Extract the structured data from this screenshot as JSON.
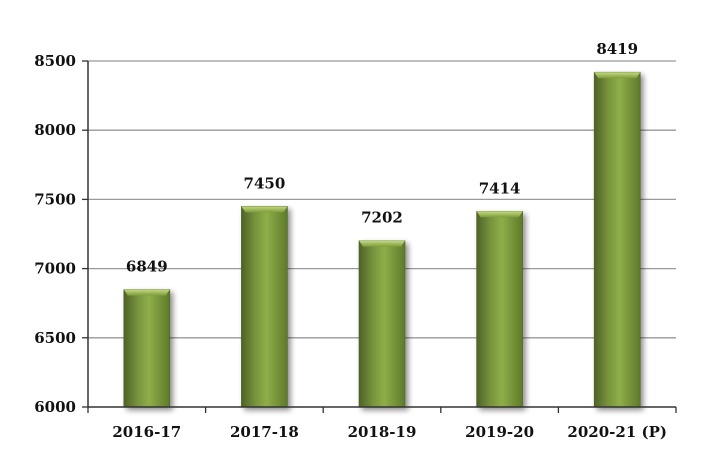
{
  "chart_data": {
    "type": "bar",
    "categories": [
      "2016-17",
      "2017-18",
      "2018-19",
      "2019-20",
      "2020-21 (P)"
    ],
    "values": [
      6849,
      7450,
      7202,
      7414,
      8419
    ],
    "data_labels": [
      "6849",
      "7450",
      "7202",
      "7414",
      "8419"
    ],
    "yticks": [
      6000,
      6500,
      7000,
      7500,
      8000,
      8500
    ],
    "ytick_labels": [
      "6000",
      "6500",
      "7000",
      "7500",
      "8000",
      "8500"
    ],
    "ylim": [
      6000,
      8500
    ],
    "grid": true,
    "legend": "none",
    "bar_color": "#77933C",
    "bar_highlight": "#A3C25E",
    "bar_shadow": "#4F6228",
    "grid_color": "#9a9a9a",
    "axis_color": "#333333"
  }
}
